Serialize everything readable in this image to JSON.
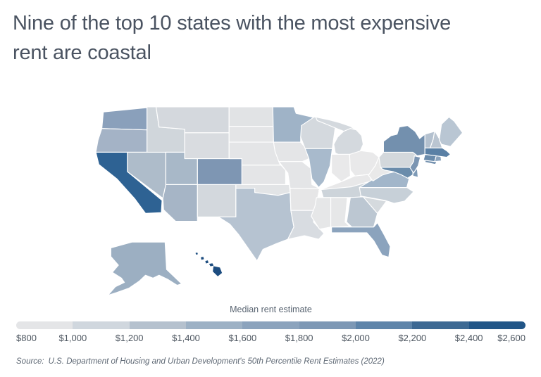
{
  "title": {
    "lines": [
      "Nine of the top 10 states with the most expensive",
      "rent are coastal"
    ],
    "full_text": "Nine of the top 10 states with the most expensive rent are coastal",
    "color": "#4a5361"
  },
  "legend": {
    "title": "Median rent estimate",
    "tick_labels": [
      "$800",
      "$1,000",
      "$1,200",
      "$1,400",
      "$1,600",
      "$1,800",
      "$2,000",
      "$2,200",
      "$2,400",
      "$2,600"
    ],
    "segment_colors": [
      "#e4e5e7",
      "#d0d7de",
      "#b5c1ce",
      "#9db1c5",
      "#8ba3bd",
      "#7d98b5",
      "#5e84a9",
      "#3d6993",
      "#215587"
    ]
  },
  "source": {
    "label": "Source:",
    "text": "U.S. Department of Housing and Urban Development's 50th Percentile Rent Estimates (2022)"
  },
  "chart_data": {
    "type": "choropleth",
    "title": "Nine of the top 10 states with the most expensive rent are coastal",
    "legend_title": "Median rent estimate",
    "scale": {
      "min": 800,
      "max": 2600,
      "tick_interval": 200,
      "unit": "USD per month",
      "colors": [
        "#e4e5e7",
        "#d0d7de",
        "#b5c1ce",
        "#9db1c5",
        "#8ba3bd",
        "#7d98b5",
        "#5e84a9",
        "#3d6993",
        "#215587"
      ]
    },
    "note": "values estimated from state fill color against the legend scale",
    "states": [
      {
        "abbr": "WA",
        "name": "Washington",
        "est_value": 1700,
        "fill": "#8aa0bb"
      },
      {
        "abbr": "OR",
        "name": "Oregon",
        "est_value": 1400,
        "fill": "#a4b3c6"
      },
      {
        "abbr": "CA",
        "name": "California",
        "est_value": 2350,
        "fill": "#2e6293"
      },
      {
        "abbr": "NV",
        "name": "Nevada",
        "est_value": 1300,
        "fill": "#aebcca"
      },
      {
        "abbr": "ID",
        "name": "Idaho",
        "est_value": 1050,
        "fill": "#d0d6db"
      },
      {
        "abbr": "MT",
        "name": "Montana",
        "est_value": 1000,
        "fill": "#d4d8dd"
      },
      {
        "abbr": "WY",
        "name": "Wyoming",
        "est_value": 950,
        "fill": "#d9dce0"
      },
      {
        "abbr": "UT",
        "name": "Utah",
        "est_value": 1300,
        "fill": "#a8b8c8"
      },
      {
        "abbr": "CO",
        "name": "Colorado",
        "est_value": 1800,
        "fill": "#7e96b3"
      },
      {
        "abbr": "AZ",
        "name": "Arizona",
        "est_value": 1300,
        "fill": "#a6b5c6"
      },
      {
        "abbr": "NM",
        "name": "New Mexico",
        "est_value": 1000,
        "fill": "#d3d8dd"
      },
      {
        "abbr": "ND",
        "name": "North Dakota",
        "est_value": 900,
        "fill": "#e1e3e5"
      },
      {
        "abbr": "SD",
        "name": "South Dakota",
        "est_value": 880,
        "fill": "#e4e5e7"
      },
      {
        "abbr": "NE",
        "name": "Nebraska",
        "est_value": 880,
        "fill": "#e4e5e7"
      },
      {
        "abbr": "KS",
        "name": "Kansas",
        "est_value": 880,
        "fill": "#e4e5e7"
      },
      {
        "abbr": "OK",
        "name": "Oklahoma",
        "est_value": 900,
        "fill": "#e2e4e6"
      },
      {
        "abbr": "TX",
        "name": "Texas",
        "est_value": 1250,
        "fill": "#b6c3d1"
      },
      {
        "abbr": "MN",
        "name": "Minnesota",
        "est_value": 1400,
        "fill": "#9fb3c7"
      },
      {
        "abbr": "IA",
        "name": "Iowa",
        "est_value": 880,
        "fill": "#e4e5e7"
      },
      {
        "abbr": "MO",
        "name": "Missouri",
        "est_value": 880,
        "fill": "#e4e5e7"
      },
      {
        "abbr": "AR",
        "name": "Arkansas",
        "est_value": 850,
        "fill": "#e6e6e7"
      },
      {
        "abbr": "LA",
        "name": "Louisiana",
        "est_value": 1000,
        "fill": "#d8dce1"
      },
      {
        "abbr": "WI",
        "name": "Wisconsin",
        "est_value": 1000,
        "fill": "#d4d9de"
      },
      {
        "abbr": "IL",
        "name": "Illinois",
        "est_value": 1350,
        "fill": "#a8bacc"
      },
      {
        "abbr": "MI",
        "name": "Michigan",
        "est_value": 1000,
        "fill": "#d4d9de"
      },
      {
        "abbr": "IN",
        "name": "Indiana",
        "est_value": 830,
        "fill": "#e9e9ea"
      },
      {
        "abbr": "OH",
        "name": "Ohio",
        "est_value": 830,
        "fill": "#e9e9ea"
      },
      {
        "abbr": "KY",
        "name": "Kentucky",
        "est_value": 840,
        "fill": "#e8e8e9"
      },
      {
        "abbr": "TN",
        "name": "Tennessee",
        "est_value": 1050,
        "fill": "#cdd4da"
      },
      {
        "abbr": "MS",
        "name": "Mississippi",
        "est_value": 850,
        "fill": "#e6e7e8"
      },
      {
        "abbr": "AL",
        "name": "Alabama",
        "est_value": 850,
        "fill": "#e6e7e8"
      },
      {
        "abbr": "GA",
        "name": "Georgia",
        "est_value": 1200,
        "fill": "#bcc7d2"
      },
      {
        "abbr": "FL",
        "name": "Florida",
        "est_value": 1650,
        "fill": "#8ba3bd"
      },
      {
        "abbr": "SC",
        "name": "South Carolina",
        "est_value": 1000,
        "fill": "#d5dade"
      },
      {
        "abbr": "NC",
        "name": "North Carolina",
        "est_value": 1100,
        "fill": "#c7d0d8"
      },
      {
        "abbr": "VA",
        "name": "Virginia",
        "est_value": 1300,
        "fill": "#a2b6ca"
      },
      {
        "abbr": "WV",
        "name": "West Virginia",
        "est_value": 800,
        "fill": "#e9e9e9"
      },
      {
        "abbr": "MD",
        "name": "Maryland",
        "est_value": 1950,
        "fill": "#6a8cab"
      },
      {
        "abbr": "DE",
        "name": "Delaware",
        "est_value": 1800,
        "fill": "#7e9ab6"
      },
      {
        "abbr": "PA",
        "name": "Pennsylvania",
        "est_value": 1000,
        "fill": "#d3d8dc"
      },
      {
        "abbr": "NJ",
        "name": "New Jersey",
        "est_value": 1800,
        "fill": "#7b95b2"
      },
      {
        "abbr": "NY",
        "name": "New York",
        "est_value": 1850,
        "fill": "#7390ae"
      },
      {
        "abbr": "CT",
        "name": "Connecticut",
        "est_value": 1950,
        "fill": "#6a8bab"
      },
      {
        "abbr": "RI",
        "name": "Rhode Island",
        "est_value": 1650,
        "fill": "#8ba3bc"
      },
      {
        "abbr": "MA",
        "name": "Massachusetts",
        "est_value": 2100,
        "fill": "#5a80a5"
      },
      {
        "abbr": "VT",
        "name": "Vermont",
        "est_value": 1150,
        "fill": "#b4c1cf"
      },
      {
        "abbr": "NH",
        "name": "New Hampshire",
        "est_value": 1150,
        "fill": "#bac5d1"
      },
      {
        "abbr": "ME",
        "name": "Maine",
        "est_value": 1150,
        "fill": "#b9c6d3"
      },
      {
        "abbr": "AK",
        "name": "Alaska",
        "est_value": 1350,
        "fill": "#9cafc2"
      },
      {
        "abbr": "HI",
        "name": "Hawaii",
        "est_value": 2550,
        "fill": "#1d4d80"
      }
    ]
  },
  "map": {
    "stroke": "#ffffff",
    "geometry": {
      "WA": [
        "10,7 68,1 68,32 8,30"
      ],
      "OR": [
        "8,30 68,32 68,63 0,63 3,46"
      ],
      "CA": [
        "0,63 42,63 42,90 88,130 87,147 66,148 52,128 28,100 4,80"
      ],
      "NV": [
        "42,63 93,63 93,108 89,127 42,90"
      ],
      "ID": [
        "68,0 80,0 84,28 118,31 118,63 68,63"
      ],
      "MT": [
        "80,0 177,0 177,36 118,36 118,31 84,28"
      ],
      "WY": [
        "118,36 177,36 177,72 118,72"
      ],
      "UT": [
        "93,63 118,63 118,72 135,72 135,108 93,108"
      ],
      "CO": [
        "135,72 194,72 194,108 135,108"
      ],
      "AZ": [
        "93,108 135,108 135,159 106,159 90,143 89,127"
      ],
      "NM": [
        "135,108 186,108 186,153 135,153"
      ],
      "ND": [
        "177,0 236,0 236,27 177,27"
      ],
      "SD": [
        "177,27 236,27 236,49 177,49"
      ],
      "NE": [
        "177,49 236,49 243,76 245,81 194,81 194,72 177,72"
      ],
      "KS": [
        "194,81 246,81 252,88 252,108 194,108"
      ],
      "OK": [
        "186,108 257,108 258,119 242,123 211,119 211,113 186,113"
      ],
      "TX": [
        "186,113 211,113 211,119 242,123 258,119 259,144 263,167 255,184 240,190 222,198 214,214 202,196 190,178 178,163 163,153 186,153"
      ],
      "MN": [
        "235,0 263,0 266,9 299,17 280,27 272,42 272,49 236,49"
      ],
      "IA": [
        "236,49 272,49 281,60 283,72 274,76 243,76 238,62"
      ],
      "MO": [
        "243,76 274,76 285,85 287,108 298,114 258,113 255,92"
      ],
      "AR": [
        "258,113 297,114 291,144 259,144"
      ],
      "LA": [
        "259,144 291,144 289,160 303,176 296,184 277,179 255,184 263,167"
      ],
      "WI": [
        "273,26 290,14 308,17 318,28 314,58 278,58 272,42"
      ],
      "IL": [
        "278,58 314,58 311,82 303,104 296,112 287,100 283,72"
      ],
      "MI": [
        "292,14 310,18 324,22 338,27 347,33 337,37 322,31 306,24 294,19",
        "318,64 316,52 321,42 329,34 338,30 346,32 353,40 355,52 350,64 337,66 322,66"
      ],
      "IN": [
        "313,66 337,66 338,96 326,104 313,92"
      ],
      "OH": [
        "337,66 352,61 368,63 376,70 371,82 363,94 344,96 338,88"
      ],
      "KY": [
        "296,116 326,104 344,96 363,94 366,103 340,111 305,115"
      ],
      "TN": [
        "299,115 340,111 366,103 368,107 350,126 302,126"
      ],
      "WV": [
        "362,95 371,82 376,70 380,84 384,88 395,90 380,95 368,103"
      ],
      "VA": [
        "350,112 366,102 380,94 398,90 408,95 416,100 413,112"
      ],
      "MD": [
        "378,84 421,84 423,93 414,99 405,94 395,90 384,88 380,86"
      ],
      "DE": [
        "421,84 427,87 428,98 421,96"
      ],
      "PA": [
        "382,63 421,63 427,68 422,76 421,84 378,84 376,70"
      ],
      "NJ": [
        "423,68 431,70 428,82 422,92 417,84 422,76"
      ],
      "NY": [
        "382,48 392,40 400,38 403,28 414,26 424,34 430,44 437,38 437,66 427,68 421,63 382,63",
        "438,72 453,75 451,80 437,77"
      ],
      "VT": [
        "437,38 450,34 448,45 444,57 437,57"
      ],
      "NH": [
        "450,33 456,44 460,57 444,57 448,45"
      ],
      "ME": [
        "456,46 459,24 469,14 476,20 487,36 471,55 459,52"
      ],
      "MA": [
        "437,57 460,57 466,61 471,66 466,70 452,68 437,66"
      ],
      "CT": [
        "437,66 452,68 450,76 435,74"
      ],
      "RI": [
        "452,68 458,67 459,75 450,76"
      ],
      "NC": [
        "350,112 413,112 422,118 410,131 396,134 384,130 352,124"
      ],
      "SC": [
        "355,125 386,131 374,148"
      ],
      "GA": [
        "338,126 355,125 374,148 369,167 340,167 333,160"
      ],
      "AL": [
        "312,126 334,126 331,160 337,166 312,167"
      ],
      "MS": [
        "293,126 312,126 312,167 297,170 286,152 291,138"
      ],
      "FL": [
        "313,167 369,167 374,161 383,178 391,194 389,209 380,206 369,186 360,175 313,175"
      ],
      "AK": [
        "20,196 48,188 92,188 94,226 102,234 114,246 108,248 96,240 84,234 76,238 66,234 58,242 44,252 28,258 16,262 26,250 38,244 34,238 22,230 30,220 20,208"
      ],
      "HI": [
        "132,203 135,202 136,205 133,206",
        "139,209 143,208 144,212 140,213",
        "145,214 149,213 150,217 146,218",
        "150,218 155,217 157,221 152,222",
        "156,221 165,223 168,231 162,236 155,229"
      ]
    }
  }
}
